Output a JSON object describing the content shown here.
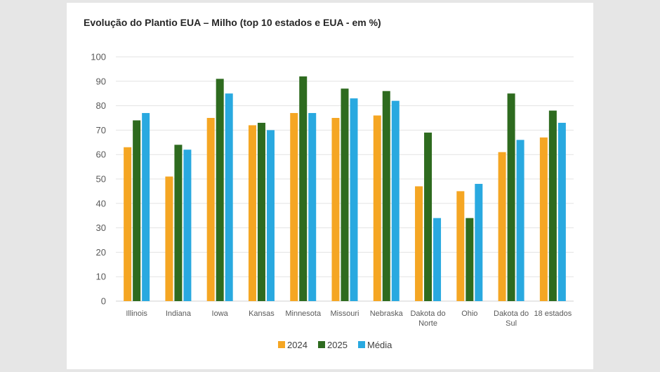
{
  "chart_data": {
    "type": "bar",
    "title": "Evolução do Plantio EUA – Milho (top 10 estados e EUA - em %)",
    "xlabel": "",
    "ylabel": "",
    "ylim": [
      0,
      100
    ],
    "ytick_step": 10,
    "grid": true,
    "legend_position": "bottom",
    "categories": [
      [
        "Illinois"
      ],
      [
        "Indiana"
      ],
      [
        "Iowa"
      ],
      [
        "Kansas"
      ],
      [
        "Minnesota"
      ],
      [
        "Missouri"
      ],
      [
        "Nebraska"
      ],
      [
        "Dakota do",
        "Norte"
      ],
      [
        "Ohio"
      ],
      [
        "Dakota do",
        "Sul"
      ],
      [
        "18 estados"
      ]
    ],
    "series": [
      {
        "name": "2024",
        "color": "#f5a623",
        "values": [
          63,
          51,
          75,
          72,
          77,
          75,
          76,
          47,
          45,
          61,
          67
        ]
      },
      {
        "name": "2025",
        "color": "#2e6b1f",
        "values": [
          74,
          64,
          91,
          73,
          92,
          87,
          86,
          69,
          34,
          85,
          78
        ]
      },
      {
        "name": "Média",
        "color": "#29a9e0",
        "values": [
          77,
          62,
          85,
          70,
          77,
          83,
          82,
          34,
          48,
          66,
          73
        ]
      }
    ]
  }
}
